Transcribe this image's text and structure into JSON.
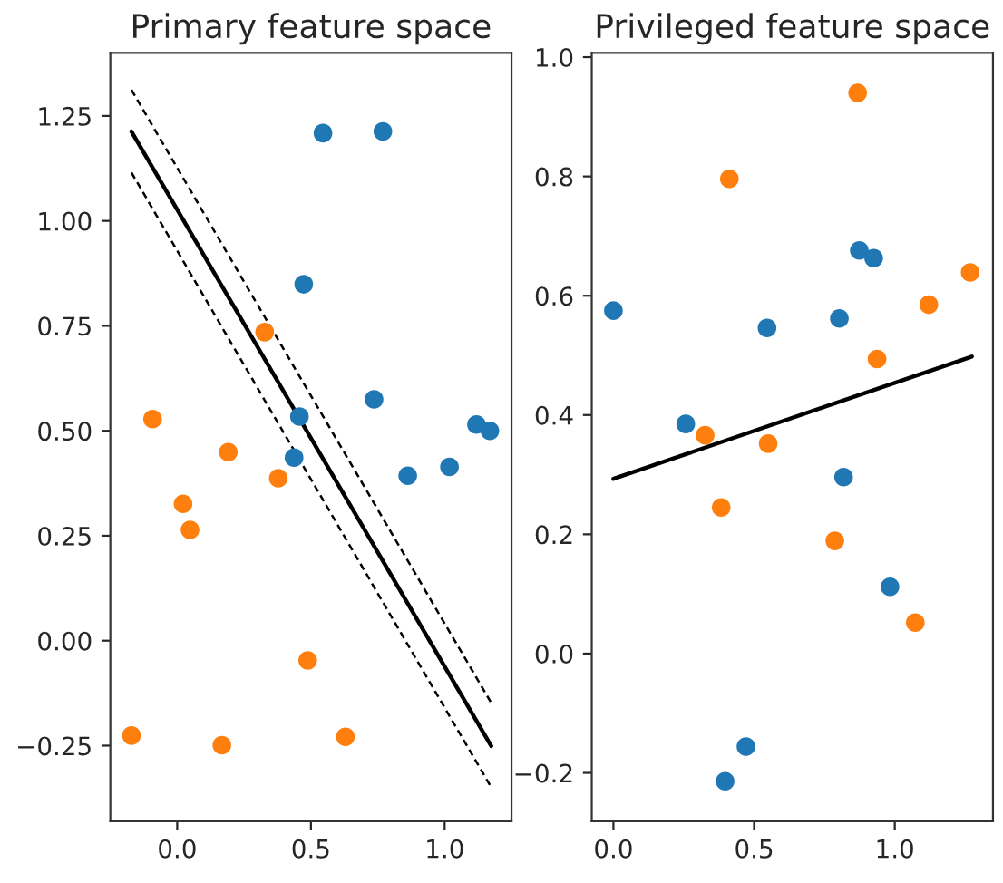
{
  "chart_data": [
    {
      "type": "scatter",
      "title": "Primary feature space",
      "xlim": [
        -0.25,
        1.25
      ],
      "ylim": [
        -0.43,
        1.4
      ],
      "xticks": [
        {
          "value": 0,
          "label": "0.0"
        },
        {
          "value": 0.5,
          "label": "0.5"
        },
        {
          "value": 1,
          "label": "1.0"
        }
      ],
      "yticks": [
        {
          "value": -0.25,
          "label": "−0.25"
        },
        {
          "value": 0,
          "label": "0.00"
        },
        {
          "value": 0.25,
          "label": "0.25"
        },
        {
          "value": 0.5,
          "label": "0.50"
        },
        {
          "value": 0.75,
          "label": "0.75"
        },
        {
          "value": 1,
          "label": "1.00"
        },
        {
          "value": 1.25,
          "label": "1.25"
        }
      ],
      "grid": false,
      "legend": false,
      "series": [
        {
          "marker": "circle",
          "color": "#1f77b4",
          "x": [
            0.545,
            0.769,
            0.473,
            0.736,
            0.457,
            0.437,
            0.862,
            1.018,
            1.119,
            1.169
          ],
          "values": [
            1.209,
            1.213,
            0.849,
            0.575,
            0.534,
            0.436,
            0.393,
            0.414,
            0.515,
            0.5
          ]
        },
        {
          "marker": "circle",
          "color": "#ff7f0e",
          "x": [
            0.327,
            -0.092,
            0.191,
            0.378,
            0.022,
            0.048,
            0.488,
            -0.171,
            0.167,
            0.629
          ],
          "values": [
            0.735,
            0.528,
            0.449,
            0.387,
            0.326,
            0.264,
            -0.047,
            -0.226,
            -0.249,
            -0.229
          ]
        },
        {
          "type": "line",
          "color": "#000000",
          "line_style": "solid",
          "x": [
            -0.171,
            1.174
          ],
          "values": [
            1.213,
            -0.251
          ]
        },
        {
          "type": "line",
          "color": "#000000",
          "line_style": "dashed",
          "x": [
            -0.171,
            1.174
          ],
          "values": [
            1.312,
            -0.148
          ]
        },
        {
          "type": "line",
          "color": "#000000",
          "line_style": "dashed",
          "x": [
            -0.171,
            1.174
          ],
          "values": [
            1.115,
            -0.349
          ]
        }
      ]
    },
    {
      "type": "scatter",
      "title": "Privileged feature space",
      "xlim": [
        -0.077,
        1.349
      ],
      "ylim": [
        -0.281,
        1.007
      ],
      "xticks": [
        {
          "value": 0,
          "label": "0.0"
        },
        {
          "value": 0.5,
          "label": "0.5"
        },
        {
          "value": 1,
          "label": "1.0"
        }
      ],
      "yticks": [
        {
          "value": -0.2,
          "label": "−0.2"
        },
        {
          "value": 0,
          "label": "0.0"
        },
        {
          "value": 0.2,
          "label": "0.2"
        },
        {
          "value": 0.4,
          "label": "0.4"
        },
        {
          "value": 0.6,
          "label": "0.6"
        },
        {
          "value": 0.8,
          "label": "0.8"
        },
        {
          "value": 1,
          "label": "1.0"
        }
      ],
      "grid": false,
      "legend": false,
      "series": [
        {
          "marker": "circle",
          "color": "#1f77b4",
          "x": [
            0.0,
            0.257,
            0.546,
            0.803,
            0.874,
            0.925,
            0.818,
            0.983,
            0.471,
            0.397
          ],
          "values": [
            0.575,
            0.385,
            0.546,
            0.562,
            0.676,
            0.663,
            0.296,
            0.112,
            -0.156,
            -0.214
          ]
        },
        {
          "marker": "circle",
          "color": "#ff7f0e",
          "x": [
            0.868,
            0.412,
            1.268,
            1.121,
            0.937,
            0.326,
            0.55,
            0.383,
            0.787,
            1.073
          ],
          "values": [
            0.94,
            0.796,
            0.639,
            0.585,
            0.494,
            0.366,
            0.352,
            0.245,
            0.189,
            0.052
          ]
        },
        {
          "type": "line",
          "color": "#000000",
          "line_style": "solid",
          "x": [
            0.0,
            1.274
          ],
          "values": [
            0.293,
            0.498
          ]
        }
      ]
    }
  ]
}
